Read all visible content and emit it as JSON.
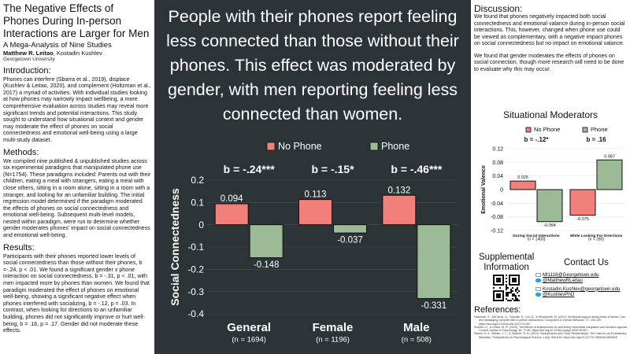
{
  "title": "The Negative Effects of Phones During In-person Interactions are Larger for Men",
  "subtitle": "A Mega-Analysis of Nine Studies",
  "author_main": "Matthew R. Leitao",
  "author_rest": ", Kostadin Kushlev",
  "affiliation": "Georgetown University",
  "intro": {
    "heading": "Introduction:",
    "text": "Phones can interfere (Sbarra et al., 2019), displace (Kushlev & Leitao, 2020), and complement (Holtzman et al., 2017) a myriad of activities. With individual studies looking at how phones may narrowly impact wellbeing, a more comprehensive evaluation across studies may reveal more significant trends and potential interactions. This study sought to understand how situational context and gender may moderate the effect of phones on social connectedness and emotional well-being using a large multi-study dataset."
  },
  "methods": {
    "heading": "Methods:",
    "text": "We compiled nine published & unpublished studies across six experimental paradigms that manipulated phone use (N=1754). These paradigms included: Parents out with their children, eating a meal with strangers, eating a meal with close others, sitting in a room alone, sitting in a room with a stranger, and looking for an unfamiliar building. The initial regression model determined if the paradigm moderated the effects of phones on social connectedness and emotional well-being. Subsequent multi-level models, nested within paradigm, were run to determine whether gender moderates phones' impact on social connectedness and emotional well-being."
  },
  "results": {
    "heading": "Results:",
    "text": "Participants with their phones reported lower levels of social connectedness than those without their phones, b =-.24, p < .01. We found a significant gender x phone interaction on social connectedness, b = -.31, p < .01, with men impacted more by phones than women. We found that paradigm moderated the effect of phones on emotional well-being, showing a significant negative effect when phones interfered with socializing, b = -.12, p = .03. In contrast, when looking for directions to an unfamiliar building, phones did not significantly improve or hurt well-being, b = .16, p = .17. Gender did not moderate these effects."
  },
  "headline": "People with their phones report feeling less connected than those without their phones. This effect was moderated by gender, with men reporting feeling less connected than women.",
  "discussion": {
    "heading": "Discussion:",
    "p1": "We found that phones negatively impacted both social connectedness and emotional valance during in-person social interactions. This, however, changed when phone use could be viewed as complementary, with a negative impact phones on social connectedness but no impact on emotional valance.",
    "p2": "We found that gender moderates  the effects of phones on social connection, though more research will need to be done to evaluate why this may occur."
  },
  "situational_title": "Situational Moderators",
  "supplemental": "Supplemental Information",
  "contact": {
    "heading": "Contact Us",
    "items": [
      {
        "icon": "mail-icon",
        "text": "Ml1118@Georgetown.edu"
      },
      {
        "icon": "twitter-icon",
        "text": "@MatthewRLeitao"
      },
      {
        "icon": "mail-icon",
        "text": "Kostadin.Kushlev@georgetown.edu"
      },
      {
        "icon": "twitter-icon",
        "text": "@KushlevPhD"
      }
    ]
  },
  "references": {
    "heading": "References:",
    "items": [
      "Holtzman, S., DeClerck, D., Turcotte, K., Lisi, D., & Woodworth, M. (2017). Emotional support during times of stress: Can text messaging compete with in-person interactions? Computers in Human Behavior, 71, 130-139. https://doi.org/10.1016/j.chb.2017.01.043",
      "Kushlev, K., & Leitao, M. R. (2020). The effects of smartphones on well-being: theoretical integration and research agenda. Current Opinion in Psychology, 36, 77-82. https://doi.org/10.1016/j.copsyc.2020.05.001",
      "Sbarra, D. A., Briskin, J. L., & Slatcher, R. B. (2019). Smartphones and Close Relationships: The Case for an Evolutionary Mismatch. Perspectives on Psychological Science, 14(4), 596-618. https://doi.org/10.1177/1745691619826535"
    ]
  },
  "colors": {
    "no_phone": "#f08079",
    "phone": "#9cba95",
    "dark_bg": "#2c3437"
  },
  "chart_data": [
    {
      "type": "bar",
      "ylabel": "Social Connectedness",
      "ylim": [
        -0.4,
        0.2
      ],
      "ticks": [
        "0.2",
        "0.1",
        "0",
        "-0.1",
        "-0.2",
        "-0.3",
        "-0.4"
      ],
      "tick_values": [
        0.2,
        0.1,
        0,
        -0.1,
        -0.2,
        -0.3,
        -0.4
      ],
      "legend": [
        "No Phone",
        "Phone"
      ],
      "legend_placement": "top",
      "categories": [
        "General",
        "Female",
        "Male"
      ],
      "category_n": [
        "(n = 1694)",
        "(n = 1196)",
        "(n = 508)"
      ],
      "effects": [
        "b = -.24***",
        "b = -.15*",
        "b = -.46***"
      ],
      "series": [
        {
          "name": "No Phone",
          "values": [
            0.094,
            0.113,
            0.132
          ],
          "labels": [
            "0.094",
            "0.113",
            "0.132"
          ]
        },
        {
          "name": "Phone",
          "values": [
            -0.148,
            -0.037,
            -0.331
          ],
          "labels": [
            "-0.148",
            "-0.037",
            "-0.331"
          ]
        }
      ]
    },
    {
      "type": "bar",
      "title": "Situational Moderators",
      "ylabel": "Emotional Valence",
      "ylim": [
        -0.12,
        0.12
      ],
      "ticks": [
        "0.12",
        "0.08",
        "0.04",
        "0",
        "-0.04",
        "-0.08",
        "-0.12"
      ],
      "tick_values": [
        0.12,
        0.08,
        0.04,
        0,
        -0.04,
        -0.08,
        -0.12
      ],
      "legend": [
        "No Phone",
        "Phone"
      ],
      "legend_placement": "top",
      "categories": [
        "During Social Interactions",
        "While Looking For Directions"
      ],
      "category_n": [
        "(n = 1400)",
        "(n = 280)"
      ],
      "effects": [
        "b = -.12*",
        "b = .16"
      ],
      "series": [
        {
          "name": "No Phone",
          "values": [
            0.025,
            -0.075
          ],
          "labels": [
            "0.025",
            "-0.075"
          ]
        },
        {
          "name": "Phone",
          "values": [
            -0.094,
            0.087
          ],
          "labels": [
            "-0.094",
            "0.087"
          ]
        }
      ]
    }
  ]
}
